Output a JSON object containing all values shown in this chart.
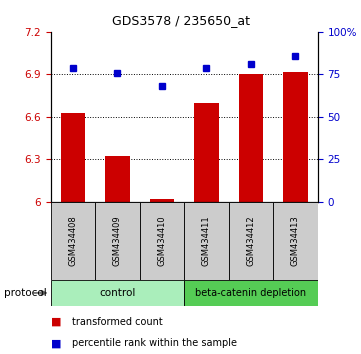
{
  "title": "GDS3578 / 235650_at",
  "samples": [
    "GSM434408",
    "GSM434409",
    "GSM434410",
    "GSM434411",
    "GSM434412",
    "GSM434413"
  ],
  "transformed_count": [
    6.63,
    6.32,
    6.02,
    6.7,
    6.9,
    6.92
  ],
  "percentile_rank": [
    79,
    76,
    68,
    79,
    81,
    86
  ],
  "ylim_left": [
    6.0,
    7.2
  ],
  "ylim_right": [
    0,
    100
  ],
  "yticks_left": [
    6.0,
    6.3,
    6.6,
    6.9,
    7.2
  ],
  "yticks_right": [
    0,
    25,
    50,
    75,
    100
  ],
  "ytick_labels_left": [
    "6",
    "6.3",
    "6.6",
    "6.9",
    "7.2"
  ],
  "ytick_labels_right": [
    "0",
    "25",
    "50",
    "75",
    "100%"
  ],
  "bar_color": "#cc0000",
  "marker_color": "#0000cc",
  "control_color": "#aaeebb",
  "depletion_color": "#55cc55",
  "sample_box_color": "#cccccc",
  "protocol_label": "protocol",
  "legend_bar_label": "transformed count",
  "legend_marker_label": "percentile rank within the sample",
  "bg_color": "#ffffff",
  "left_axis_color": "#cc0000",
  "right_axis_color": "#0000cc",
  "title_fontsize": 9,
  "axis_fontsize": 7.5,
  "sample_fontsize": 6,
  "protocol_fontsize": 7.5,
  "legend_fontsize": 7
}
